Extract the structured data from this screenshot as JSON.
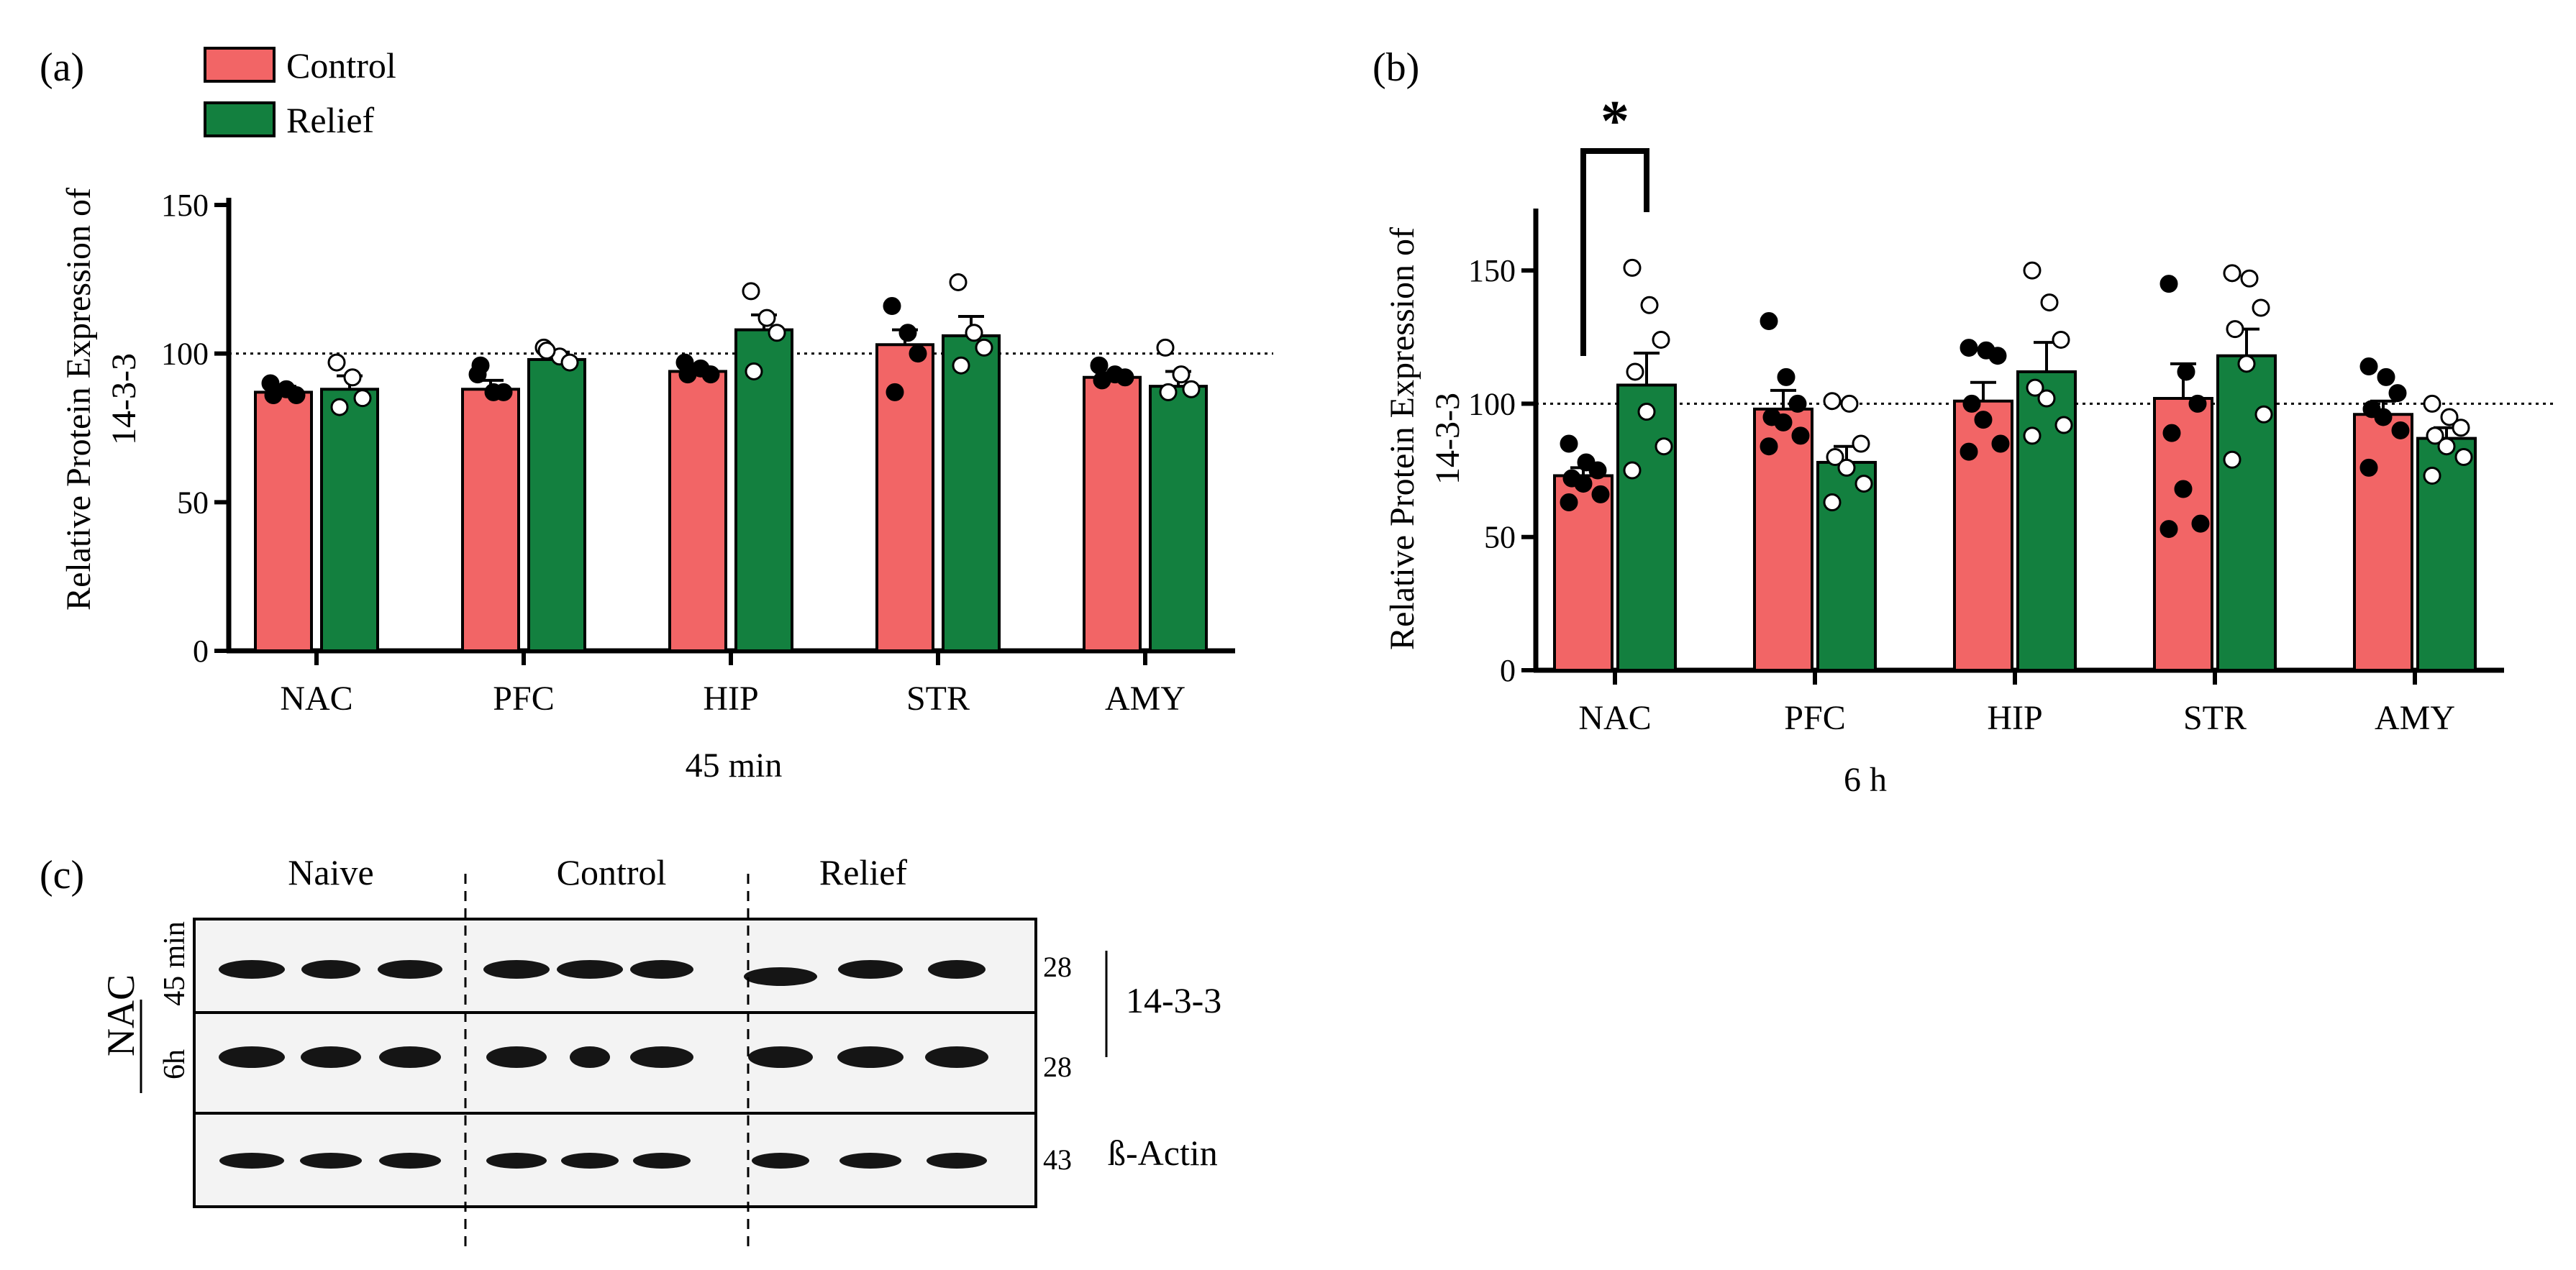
{
  "colors": {
    "control": "#F26566",
    "relief": "#13803F",
    "axis": "#000000",
    "blot_bg": "#F3F3F3",
    "band": "#151515"
  },
  "legend": {
    "control_label": "Control",
    "relief_label": "Relief"
  },
  "panel_labels": {
    "a": "(a)",
    "b": "(b)",
    "c": "(c)"
  },
  "chart_data": [
    {
      "type": "bar",
      "id": "a",
      "title": "",
      "ylabel_lines": [
        "Relative Protein Expression of",
        "14-3-3"
      ],
      "xlabel": "45 min",
      "categories": [
        "NAC",
        "PFC",
        "HIP",
        "STR",
        "AMY"
      ],
      "ylim": [
        0,
        150
      ],
      "yticks": [
        0,
        50,
        100,
        150
      ],
      "reference_line": 100,
      "series": [
        {
          "name": "Control",
          "values": [
            87,
            88,
            94,
            103,
            92
          ],
          "sem": [
            2,
            3,
            1.5,
            5,
            1.5
          ],
          "points": [
            [
              90,
              88,
              86,
              86
            ],
            [
              93,
              87,
              87,
              96
            ],
            [
              97,
              95,
              93,
              93
            ],
            [
              116,
              107,
              100,
              87
            ],
            [
              96,
              93,
              92,
              91
            ]
          ]
        },
        {
          "name": "Relief",
          "values": [
            88,
            98,
            108,
            106,
            89
          ],
          "sem": [
            4.5,
            2.5,
            5,
            6.5,
            5
          ],
          "points": [
            [
              97,
              92,
              85,
              82
            ],
            [
              102,
              99,
              97,
              101
            ],
            [
              121,
              112,
              107,
              94
            ],
            [
              124,
              107,
              102,
              96
            ],
            [
              102,
              93,
              88,
              87
            ]
          ]
        }
      ]
    },
    {
      "type": "bar",
      "id": "b",
      "title": "",
      "ylabel_lines": [
        "Relative Protein Expression of",
        "14-3-3"
      ],
      "xlabel": "6 h",
      "categories": [
        "NAC",
        "PFC",
        "HIP",
        "STR",
        "AMY"
      ],
      "ylim": [
        0,
        170
      ],
      "yticks": [
        0,
        50,
        100,
        150
      ],
      "reference_line": 100,
      "significance": {
        "label": "*",
        "category": "NAC"
      },
      "series": [
        {
          "name": "Control",
          "values": [
            73,
            98,
            101,
            102,
            96
          ],
          "sem": [
            3,
            7,
            7,
            13,
            5
          ],
          "points": [
            [
              85,
              78,
              75,
              72,
              70,
              66,
              63
            ],
            [
              131,
              110,
              100,
              95,
              93,
              88,
              84
            ],
            [
              121,
              120,
              118,
              100,
              94,
              85,
              82
            ],
            [
              145,
              112,
              100,
              89,
              68,
              55,
              53
            ],
            [
              114,
              110,
              104,
              98,
              95,
              90,
              76
            ]
          ]
        },
        {
          "name": "Relief",
          "values": [
            107,
            78,
            112,
            118,
            87
          ],
          "sem": [
            12,
            6,
            11,
            10,
            4
          ],
          "points": [
            [
              151,
              137,
              124,
              112,
              97,
              84,
              75
            ],
            [
              101,
              100,
              85,
              80,
              76,
              70,
              63
            ],
            [
              150,
              138,
              124,
              106,
              102,
              92,
              88
            ],
            [
              149,
              147,
              136,
              128,
              115,
              96,
              79
            ],
            [
              100,
              95,
              91,
              88,
              84,
              80,
              73
            ]
          ]
        }
      ]
    }
  ],
  "blot": {
    "groups": [
      "Naive",
      "Control",
      "Relief"
    ],
    "row_labels": {
      "region": "NAC",
      "row1": "45 min",
      "row2": "6h"
    },
    "mw_markers": [
      "28",
      "28",
      "43"
    ],
    "protein_labels": [
      "14-3-3",
      "ß-Actin"
    ]
  }
}
